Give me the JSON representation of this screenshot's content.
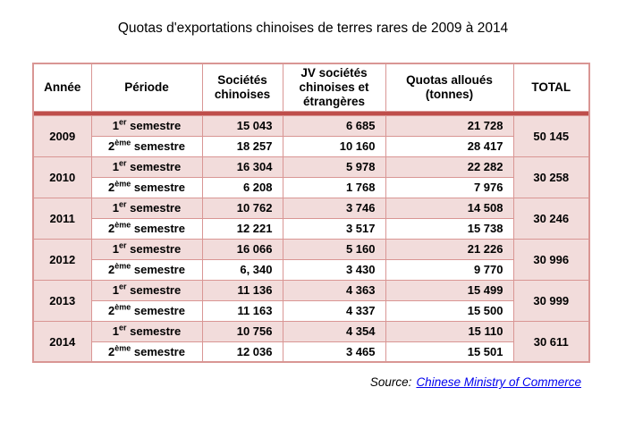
{
  "title": "Quotas d'exportations chinoises de terres rares de 2009 à 2014",
  "table": {
    "headers": [
      "Année",
      "Période",
      "Sociétés chinoises",
      "JV sociétés chinoises et étrangères",
      "Quotas alloués (tonnes)",
      "TOTAL"
    ],
    "periods": [
      {
        "base": "1",
        "sup": "er",
        "rest": "semestre"
      },
      {
        "base": "2",
        "sup": "ème",
        "rest": "semestre"
      }
    ],
    "years": [
      {
        "year": "2009",
        "total": "50 145",
        "rows": [
          [
            "15 043",
            "6 685",
            "21 728"
          ],
          [
            "18 257",
            "10 160",
            "28 417"
          ]
        ]
      },
      {
        "year": "2010",
        "total": "30 258",
        "rows": [
          [
            "16 304",
            "5 978",
            "22 282"
          ],
          [
            "6 208",
            "1 768",
            "7 976"
          ]
        ]
      },
      {
        "year": "2011",
        "total": "30 246",
        "rows": [
          [
            "10 762",
            "3 746",
            "14 508"
          ],
          [
            "12 221",
            "3 517",
            "15 738"
          ]
        ]
      },
      {
        "year": "2012",
        "total": "30 996",
        "rows": [
          [
            "16 066",
            "5 160",
            "21 226"
          ],
          [
            "6, 340",
            "3 430",
            "9 770"
          ]
        ]
      },
      {
        "year": "2013",
        "total": "30 999",
        "rows": [
          [
            "11 136",
            "4 363",
            "15 499"
          ],
          [
            "11 163",
            "4 337",
            "15 500"
          ]
        ]
      },
      {
        "year": "2014",
        "total": "30 611",
        "rows": [
          [
            "10 756",
            "4 354",
            "15 110"
          ],
          [
            "12 036",
            "3 465",
            "15 501"
          ]
        ]
      }
    ]
  },
  "source": {
    "label": "Source:",
    "link": "Chinese Ministry of Commerce"
  },
  "colors": {
    "cell_pink": "#f2dcdb",
    "grid_border": "#d99694",
    "header_band": "#bf4e4b",
    "link_blue": "#0000ee",
    "text": "#000000"
  }
}
